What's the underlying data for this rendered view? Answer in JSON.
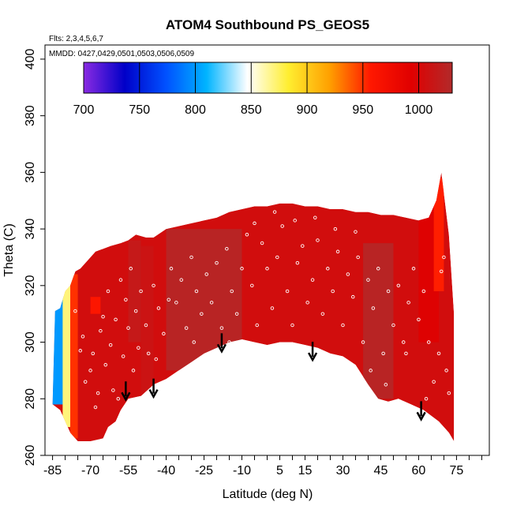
{
  "chart_data": {
    "type": "heatmap",
    "title": "ATOM4 Southbound PS_GEOS5",
    "flights_label": "Flts: 2,3,4,5,6,7",
    "dates_label": "MMDD: 0427,0429,0501,0503,0506,0509",
    "xlabel": "Latitude (deg N)",
    "ylabel": "Theta (C)",
    "xlim": [
      -88,
      88
    ],
    "ylim": [
      260,
      405
    ],
    "x_ticks": [
      -85,
      -70,
      -55,
      -40,
      -25,
      -10,
      5,
      15,
      30,
      45,
      60,
      75
    ],
    "y_ticks": [
      260,
      280,
      300,
      320,
      340,
      360,
      380,
      400
    ],
    "colorbar": {
      "min": 700,
      "max": 1030,
      "ticks": [
        700,
        750,
        800,
        850,
        900,
        950,
        1000
      ],
      "colors": [
        "#8a2be2",
        "#0000c8",
        "#0050ff",
        "#00b4ff",
        "#ffffff",
        "#ffee30",
        "#ffa000",
        "#ff1800",
        "#e00000",
        "#b22a2a"
      ]
    },
    "field_top": [
      [
        -84,
        311
      ],
      [
        -82,
        312
      ],
      [
        -80,
        318
      ],
      [
        -78,
        320
      ],
      [
        -76,
        325
      ],
      [
        -74,
        326
      ],
      [
        -72,
        328
      ],
      [
        -70,
        330
      ],
      [
        -68,
        332
      ],
      [
        -65,
        333
      ],
      [
        -62,
        334
      ],
      [
        -58,
        335
      ],
      [
        -55,
        336
      ],
      [
        -52,
        338
      ],
      [
        -48,
        337
      ],
      [
        -45,
        337
      ],
      [
        -40,
        340
      ],
      [
        -35,
        341
      ],
      [
        -30,
        342
      ],
      [
        -25,
        343
      ],
      [
        -20,
        344
      ],
      [
        -15,
        346
      ],
      [
        -10,
        347
      ],
      [
        -5,
        348
      ],
      [
        0,
        348
      ],
      [
        5,
        349
      ],
      [
        10,
        349
      ],
      [
        15,
        348
      ],
      [
        20,
        348
      ],
      [
        25,
        347
      ],
      [
        30,
        347
      ],
      [
        35,
        346
      ],
      [
        40,
        346
      ],
      [
        45,
        345
      ],
      [
        50,
        345
      ],
      [
        55,
        344
      ],
      [
        60,
        343
      ],
      [
        64,
        344
      ],
      [
        67,
        350
      ],
      [
        69,
        360
      ],
      [
        72,
        338
      ],
      [
        74,
        310
      ],
      [
        74,
        290
      ]
    ],
    "field_bottom": [
      [
        74,
        265
      ],
      [
        72,
        268
      ],
      [
        68,
        272
      ],
      [
        62,
        276
      ],
      [
        57,
        278
      ],
      [
        52,
        280
      ],
      [
        48,
        279
      ],
      [
        44,
        280
      ],
      [
        40,
        285
      ],
      [
        35,
        292
      ],
      [
        30,
        295
      ],
      [
        25,
        296
      ],
      [
        20,
        298
      ],
      [
        15,
        299
      ],
      [
        10,
        300
      ],
      [
        5,
        300
      ],
      [
        0,
        299
      ],
      [
        -5,
        300
      ],
      [
        -10,
        301
      ],
      [
        -15,
        300
      ],
      [
        -20,
        298
      ],
      [
        -25,
        296
      ],
      [
        -30,
        293
      ],
      [
        -35,
        290
      ],
      [
        -40,
        287
      ],
      [
        -45,
        285
      ],
      [
        -50,
        281
      ],
      [
        -55,
        280
      ],
      [
        -58,
        276
      ],
      [
        -60,
        272
      ],
      [
        -63,
        270
      ],
      [
        -65,
        266
      ],
      [
        -70,
        265
      ],
      [
        -75,
        265
      ],
      [
        -78,
        268
      ],
      [
        -82,
        276
      ],
      [
        -85,
        278
      ]
    ],
    "regions": [
      {
        "lat": [
          -85,
          -80
        ],
        "theta": [
          278,
          316
        ],
        "value": 800
      },
      {
        "lat": [
          -81,
          -77
        ],
        "theta": [
          270,
          322
        ],
        "value": 870
      },
      {
        "lat": [
          -78,
          -75
        ],
        "theta": [
          266,
          324
        ],
        "value": 950
      },
      {
        "lat": [
          -70,
          -66
        ],
        "theta": [
          310,
          316
        ],
        "value": 960
      },
      {
        "lat": [
          -55,
          -50
        ],
        "theta": [
          300,
          336
        ],
        "value": 1015
      },
      {
        "lat": [
          -50,
          -45
        ],
        "theta": [
          280,
          334
        ],
        "value": 1010
      },
      {
        "lat": [
          -40,
          -10
        ],
        "theta": [
          290,
          340
        ],
        "value": 1025
      },
      {
        "lat": [
          38,
          50
        ],
        "theta": [
          280,
          335
        ],
        "value": 1025
      },
      {
        "lat": [
          60,
          68
        ],
        "theta": [
          300,
          350
        ],
        "value": 995
      },
      {
        "lat": [
          66,
          70
        ],
        "theta": [
          318,
          358
        ],
        "value": 955
      }
    ],
    "arrows": [
      {
        "lat": -56,
        "theta": 280
      },
      {
        "lat": -45,
        "theta": 281
      },
      {
        "lat": -18,
        "theta": 297
      },
      {
        "lat": 18,
        "theta": 294
      },
      {
        "lat": 61,
        "theta": 273
      }
    ],
    "observations": [
      [
        -76,
        311
      ],
      [
        -74,
        297
      ],
      [
        -72,
        286
      ],
      [
        -73,
        302
      ],
      [
        -70,
        290
      ],
      [
        -69,
        296
      ],
      [
        -68,
        277
      ],
      [
        -66,
        304
      ],
      [
        -65,
        309
      ],
      [
        -63,
        318
      ],
      [
        -62,
        299
      ],
      [
        -61,
        283
      ],
      [
        -60,
        308
      ],
      [
        -58,
        322
      ],
      [
        -57,
        295
      ],
      [
        -56,
        315
      ],
      [
        -55,
        305
      ],
      [
        -54,
        326
      ],
      [
        -53,
        290
      ],
      [
        -52,
        311
      ],
      [
        -50,
        318
      ],
      [
        -48,
        306
      ],
      [
        -47,
        296
      ],
      [
        -45,
        320
      ],
      [
        -43,
        312
      ],
      [
        -41,
        303
      ],
      [
        -38,
        326
      ],
      [
        -36,
        314
      ],
      [
        -34,
        322
      ],
      [
        -32,
        305
      ],
      [
        -30,
        330
      ],
      [
        -28,
        318
      ],
      [
        -26,
        310
      ],
      [
        -24,
        324
      ],
      [
        -22,
        314
      ],
      [
        -20,
        328
      ],
      [
        -18,
        305
      ],
      [
        -16,
        333
      ],
      [
        -14,
        318
      ],
      [
        -12,
        310
      ],
      [
        -10,
        326
      ],
      [
        -8,
        338
      ],
      [
        -6,
        320
      ],
      [
        -4,
        306
      ],
      [
        -2,
        335
      ],
      [
        0,
        326
      ],
      [
        2,
        312
      ],
      [
        4,
        330
      ],
      [
        6,
        341
      ],
      [
        8,
        318
      ],
      [
        10,
        306
      ],
      [
        12,
        328
      ],
      [
        14,
        334
      ],
      [
        16,
        314
      ],
      [
        18,
        322
      ],
      [
        20,
        336
      ],
      [
        22,
        310
      ],
      [
        24,
        326
      ],
      [
        26,
        318
      ],
      [
        28,
        332
      ],
      [
        30,
        306
      ],
      [
        32,
        324
      ],
      [
        34,
        316
      ],
      [
        36,
        330
      ],
      [
        38,
        300
      ],
      [
        40,
        322
      ],
      [
        42,
        312
      ],
      [
        44,
        326
      ],
      [
        46,
        296
      ],
      [
        48,
        318
      ],
      [
        50,
        306
      ],
      [
        52,
        320
      ],
      [
        54,
        300
      ],
      [
        56,
        314
      ],
      [
        58,
        326
      ],
      [
        60,
        308
      ],
      [
        62,
        318
      ],
      [
        64,
        300
      ],
      [
        66,
        286
      ],
      [
        68,
        296
      ],
      [
        70,
        330
      ],
      [
        71,
        290
      ],
      [
        -67,
        282
      ],
      [
        -64,
        292
      ],
      [
        -59,
        280
      ],
      [
        -51,
        298
      ],
      [
        -44,
        294
      ],
      [
        -39,
        315
      ],
      [
        -29,
        300
      ],
      [
        -15,
        300
      ],
      [
        -5,
        342
      ],
      [
        3,
        346
      ],
      [
        11,
        343
      ],
      [
        19,
        344
      ],
      [
        27,
        340
      ],
      [
        35,
        339
      ],
      [
        41,
        290
      ],
      [
        47,
        285
      ],
      [
        55,
        296
      ],
      [
        63,
        280
      ],
      [
        69,
        325
      ],
      [
        72,
        282
      ]
    ]
  }
}
